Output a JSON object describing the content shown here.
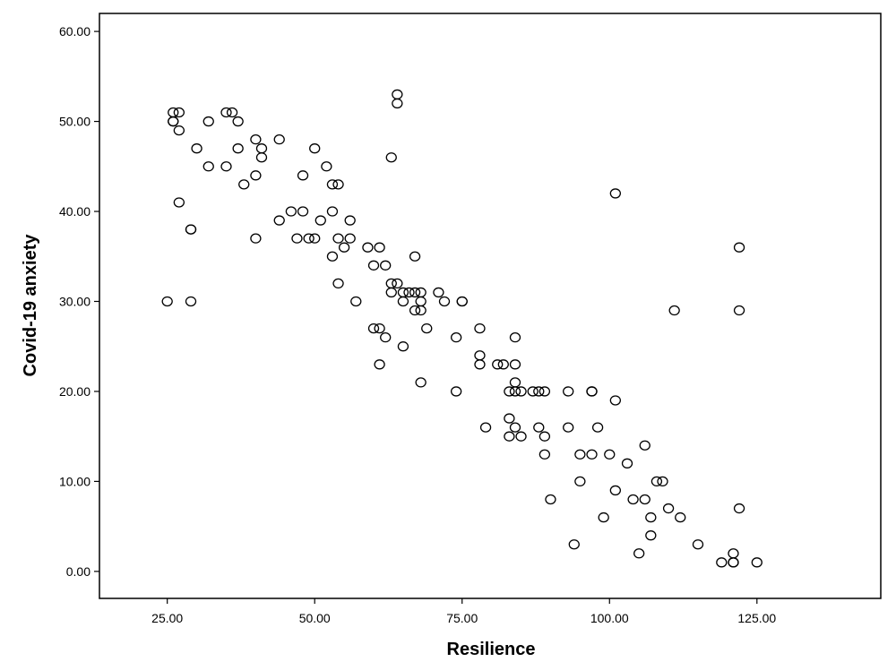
{
  "chart_data": {
    "type": "scatter",
    "title": "",
    "xlabel": "Resilience",
    "ylabel": "Covid-19 anxiety",
    "xlim": [
      13.5,
      146
    ],
    "ylim": [
      -3,
      62
    ],
    "xticks": [
      "25.00",
      "50.00",
      "75.00",
      "100.00",
      "125.00"
    ],
    "xtick_values": [
      25,
      50,
      75,
      100,
      125
    ],
    "yticks": [
      "0.00",
      "10.00",
      "20.00",
      "30.00",
      "40.00",
      "50.00",
      "60.00"
    ],
    "ytick_values": [
      0,
      10,
      20,
      30,
      40,
      50,
      60
    ],
    "grid": false,
    "marker": "hollow-circle",
    "marker_color": "#000000",
    "points": [
      [
        25,
        30
      ],
      [
        26,
        51
      ],
      [
        26,
        50
      ],
      [
        26,
        50
      ],
      [
        27,
        51
      ],
      [
        27,
        49
      ],
      [
        27,
        41
      ],
      [
        29,
        38
      ],
      [
        29,
        38
      ],
      [
        29,
        30
      ],
      [
        30,
        47
      ],
      [
        32,
        50
      ],
      [
        32,
        45
      ],
      [
        35,
        51
      ],
      [
        36,
        51
      ],
      [
        35,
        45
      ],
      [
        37,
        50
      ],
      [
        37,
        47
      ],
      [
        38,
        43
      ],
      [
        40,
        48
      ],
      [
        40,
        44
      ],
      [
        40,
        37
      ],
      [
        41,
        47
      ],
      [
        41,
        46
      ],
      [
        44,
        48
      ],
      [
        44,
        39
      ],
      [
        46,
        40
      ],
      [
        47,
        37
      ],
      [
        48,
        44
      ],
      [
        48,
        40
      ],
      [
        49,
        37
      ],
      [
        50,
        47
      ],
      [
        50,
        37
      ],
      [
        51,
        39
      ],
      [
        52,
        45
      ],
      [
        53,
        43
      ],
      [
        53,
        40
      ],
      [
        53,
        35
      ],
      [
        54,
        43
      ],
      [
        54,
        37
      ],
      [
        54,
        32
      ],
      [
        55,
        36
      ],
      [
        56,
        39
      ],
      [
        56,
        37
      ],
      [
        57,
        30
      ],
      [
        59,
        36
      ],
      [
        60,
        34
      ],
      [
        60,
        27
      ],
      [
        61,
        36
      ],
      [
        61,
        27
      ],
      [
        61,
        23
      ],
      [
        62,
        34
      ],
      [
        62,
        26
      ],
      [
        63,
        46
      ],
      [
        63,
        32
      ],
      [
        63,
        31
      ],
      [
        64,
        53
      ],
      [
        64,
        52
      ],
      [
        64,
        32
      ],
      [
        65,
        31
      ],
      [
        65,
        30
      ],
      [
        65,
        25
      ],
      [
        66,
        31
      ],
      [
        67,
        35
      ],
      [
        67,
        31
      ],
      [
        67,
        29
      ],
      [
        68,
        31
      ],
      [
        68,
        30
      ],
      [
        68,
        29
      ],
      [
        68,
        21
      ],
      [
        69,
        27
      ],
      [
        71,
        31
      ],
      [
        72,
        30
      ],
      [
        74,
        26
      ],
      [
        74,
        20
      ],
      [
        75,
        30
      ],
      [
        75,
        30
      ],
      [
        78,
        27
      ],
      [
        78,
        24
      ],
      [
        78,
        23
      ],
      [
        79,
        16
      ],
      [
        81,
        23
      ],
      [
        82,
        23
      ],
      [
        83,
        20
      ],
      [
        83,
        17
      ],
      [
        83,
        15
      ],
      [
        84,
        26
      ],
      [
        84,
        23
      ],
      [
        84,
        21
      ],
      [
        84,
        20
      ],
      [
        84,
        16
      ],
      [
        85,
        20
      ],
      [
        85,
        15
      ],
      [
        87,
        20
      ],
      [
        88,
        20
      ],
      [
        88,
        16
      ],
      [
        89,
        20
      ],
      [
        89,
        15
      ],
      [
        89,
        13
      ],
      [
        90,
        8
      ],
      [
        93,
        20
      ],
      [
        93,
        16
      ],
      [
        94,
        3
      ],
      [
        95,
        13
      ],
      [
        95,
        10
      ],
      [
        97,
        20
      ],
      [
        97,
        20
      ],
      [
        97,
        13
      ],
      [
        98,
        16
      ],
      [
        99,
        6
      ],
      [
        100,
        13
      ],
      [
        101,
        42
      ],
      [
        101,
        19
      ],
      [
        101,
        9
      ],
      [
        103,
        12
      ],
      [
        104,
        8
      ],
      [
        105,
        2
      ],
      [
        106,
        14
      ],
      [
        106,
        8
      ],
      [
        107,
        6
      ],
      [
        107,
        4
      ],
      [
        108,
        10
      ],
      [
        109,
        10
      ],
      [
        110,
        7
      ],
      [
        111,
        29
      ],
      [
        112,
        6
      ],
      [
        115,
        3
      ],
      [
        119,
        1
      ],
      [
        121,
        2
      ],
      [
        121,
        1
      ],
      [
        121,
        1
      ],
      [
        122,
        36
      ],
      [
        122,
        29
      ],
      [
        122,
        7
      ],
      [
        125,
        1
      ]
    ]
  }
}
